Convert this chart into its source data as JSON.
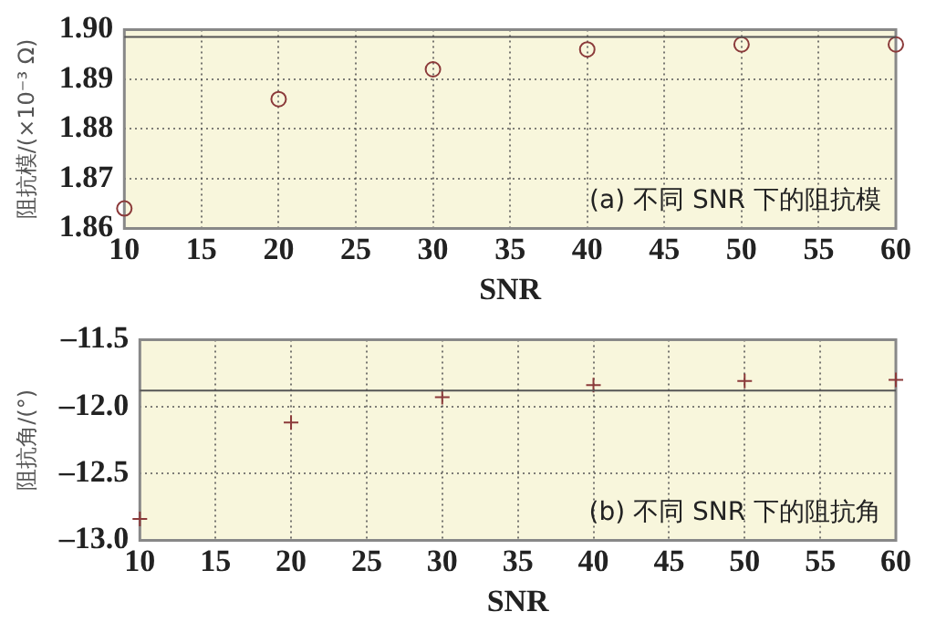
{
  "chart_data": [
    {
      "type": "scatter",
      "xlabel": "SNR",
      "ylabel": "阻抗模/(×10⁻³ Ω)",
      "annotations": [
        "(a) 不同 SNR 下的阻抗模"
      ],
      "series": [
        {
          "color": "#8b3a3a",
          "x": [
            10,
            20,
            30,
            40,
            50,
            60
          ],
          "values": [
            1.864,
            1.886,
            1.892,
            1.896,
            1.897,
            1.897
          ]
        }
      ],
      "xlim": [
        10,
        60
      ],
      "xticks": [
        10,
        15,
        20,
        25,
        30,
        35,
        40,
        45,
        50,
        55,
        60
      ],
      "ylim": [
        1.86,
        1.9
      ],
      "yticks": [
        {
          "value": 1.86,
          "label": "1.86"
        },
        {
          "value": 1.87,
          "label": "1.87"
        },
        {
          "value": 1.88,
          "label": "1.88"
        },
        {
          "value": 1.89,
          "label": "1.89"
        },
        {
          "value": 1.9,
          "label": "1.90"
        }
      ],
      "ref_lines": [
        {
          "axis": "y",
          "value": 1.8985,
          "color": "#555555"
        }
      ],
      "grid": true,
      "legend": false,
      "marker": "circle"
    },
    {
      "type": "scatter",
      "xlabel": "SNR",
      "ylabel": "阻抗角/(°)",
      "annotations": [
        "(b) 不同 SNR 下的阻抗角"
      ],
      "series": [
        {
          "color": "#8b3a3a",
          "x": [
            10,
            20,
            30,
            40,
            50,
            60
          ],
          "values": [
            -12.84,
            -12.12,
            -11.93,
            -11.84,
            -11.81,
            -11.8
          ]
        }
      ],
      "xlim": [
        10,
        60
      ],
      "xticks": [
        10,
        15,
        20,
        25,
        30,
        35,
        40,
        45,
        50,
        55,
        60
      ],
      "ylim": [
        -13,
        -11.5
      ],
      "yticks": [
        {
          "value": -13,
          "label": "–13.0"
        },
        {
          "value": -12.5,
          "label": "–12.5"
        },
        {
          "value": -12,
          "label": "–12.0"
        },
        {
          "value": -11.5,
          "label": "–11.5"
        }
      ],
      "ref_lines": [
        {
          "axis": "y",
          "value": -11.88,
          "color": "#555555"
        }
      ],
      "grid": true,
      "legend": false,
      "marker": "cross"
    }
  ]
}
